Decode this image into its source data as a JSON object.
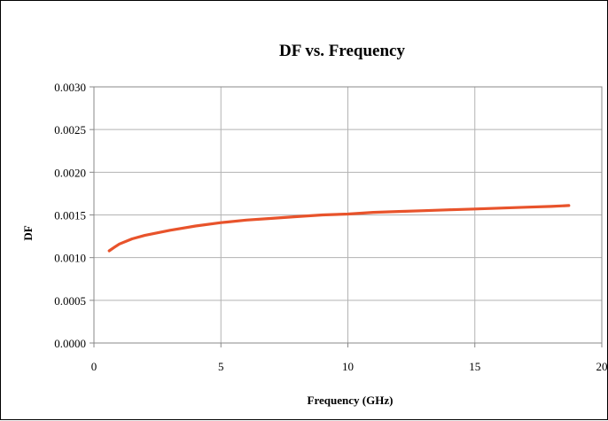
{
  "chart_data": {
    "type": "line",
    "title": "DF vs. Frequency",
    "xlabel": "Frequency (GHz)",
    "ylabel": "DF",
    "xlim": [
      0,
      20
    ],
    "ylim": [
      0,
      0.003
    ],
    "x_ticks": [
      "0",
      "5",
      "10",
      "15",
      "20"
    ],
    "y_ticks": [
      "0.0000",
      "0.0005",
      "0.0010",
      "0.0015",
      "0.0020",
      "0.0025",
      "0.0030"
    ],
    "grid": true,
    "legend": "none",
    "series": [
      {
        "color": "#e8532b",
        "x": [
          0.6,
          0.8,
          1,
          1.5,
          2,
          3,
          4,
          5,
          6,
          7,
          8,
          9,
          10,
          11,
          12,
          13,
          14,
          15,
          16,
          17,
          18,
          18.7
        ],
        "y": [
          0.00108,
          0.00112,
          0.00116,
          0.00122,
          0.00126,
          0.00132,
          0.00137,
          0.00141,
          0.00144,
          0.00146,
          0.00148,
          0.0015,
          0.00151,
          0.00153,
          0.00154,
          0.00155,
          0.00156,
          0.00157,
          0.00158,
          0.00159,
          0.0016,
          0.00161
        ]
      }
    ]
  }
}
